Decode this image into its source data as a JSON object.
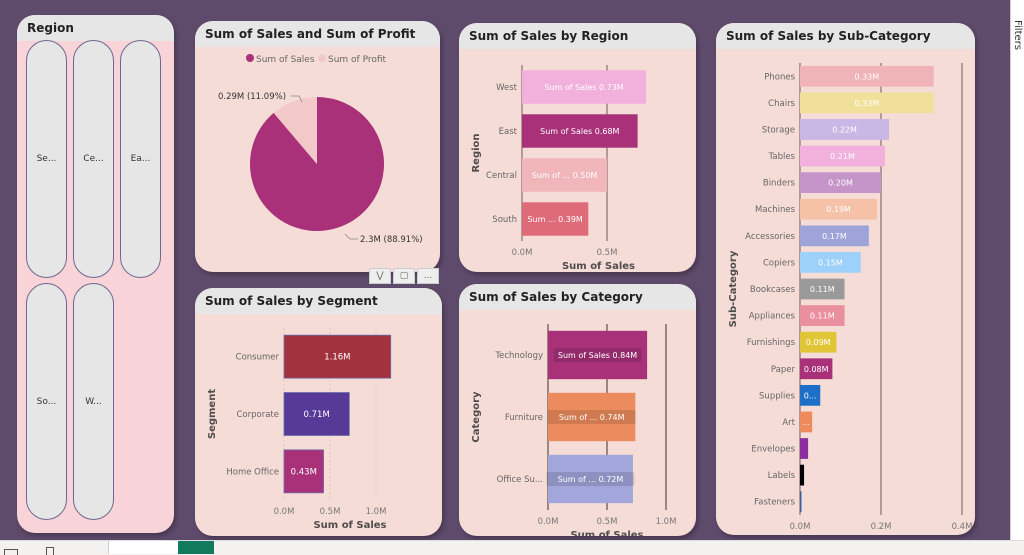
{
  "slicer": {
    "title": "Region",
    "items": [
      {
        "label": "Se..."
      },
      {
        "label": "Ce..."
      },
      {
        "label": "Ea..."
      },
      {
        "label": "So..."
      },
      {
        "label": "W..."
      }
    ]
  },
  "filters_pane": {
    "label": "Filters"
  },
  "visual_toolbar": {
    "filter_icon": "filter-icon",
    "focus_icon": "focus-mode-icon",
    "more_label": "..."
  },
  "chart_data": [
    {
      "type": "pie",
      "title": "Sum of Sales and Sum of Profit",
      "legend": [
        "Sum of Sales",
        "Sum of Profit"
      ],
      "legend_position": "top-center",
      "slices": [
        {
          "name": "Sum of Sales",
          "value": 2.3,
          "label": "2.3M (88.91%)",
          "color": "#a8317a"
        },
        {
          "name": "Sum of Profit",
          "value": 0.29,
          "label": "0.29M (11.09%)",
          "color": "#f2c9c8"
        }
      ]
    },
    {
      "type": "bar",
      "title": "Sum of Sales by Region",
      "ylabel": "Region",
      "xlabel": "Sum of Sales",
      "categories": [
        "West",
        "East",
        "Central",
        "South"
      ],
      "values": [
        0.73,
        0.68,
        0.5,
        0.39
      ],
      "data_labels": [
        "Sum of Sales 0.73M",
        "Sum of Sales 0.68M",
        "Sum of ... 0.50M",
        "Sum ... 0.39M"
      ],
      "colors": [
        "#f2b1dc",
        "#a8317a",
        "#f0b6ba",
        "#df6b78"
      ],
      "xticks": [
        "0.0M",
        "0.5M"
      ],
      "xlim": [
        0,
        0.9
      ]
    },
    {
      "type": "bar",
      "title": "Sum of Sales by Sub-Category",
      "ylabel": "Sub-Category",
      "xlabel": "Sum of Sales",
      "categories": [
        "Phones",
        "Chairs",
        "Storage",
        "Tables",
        "Binders",
        "Machines",
        "Accessories",
        "Copiers",
        "Bookcases",
        "Appliances",
        "Furnishings",
        "Paper",
        "Supplies",
        "Art",
        "Envelopes",
        "Labels",
        "Fasteners"
      ],
      "values": [
        0.33,
        0.33,
        0.22,
        0.21,
        0.2,
        0.19,
        0.17,
        0.15,
        0.11,
        0.11,
        0.09,
        0.08,
        0.05,
        0.03,
        0.02,
        0.01,
        0.003
      ],
      "data_labels": [
        "0.33M",
        "0.33M",
        "0.22M",
        "0.21M",
        "0.20M",
        "0.19M",
        "0.17M",
        "0.15M",
        "0.11M",
        "0.11M",
        "0.09M",
        "0.08M",
        "0...",
        "...",
        "",
        "",
        ""
      ],
      "colors": [
        "#f0b3b8",
        "#f0e09a",
        "#c9b7e6",
        "#f2b1dc",
        "#c594c9",
        "#f5c2a8",
        "#9ea3da",
        "#9dd1fb",
        "#9a9a9a",
        "#ea8f9e",
        "#e0c537",
        "#a8317a",
        "#1e6fc7",
        "#ee8a5c",
        "#8b2d9e",
        "#000000",
        "#3a5fa0"
      ],
      "xticks": [
        "0.0M",
        "0.2M",
        "0.4M"
      ],
      "xlim": [
        0,
        0.4
      ]
    },
    {
      "type": "bar",
      "title": "Sum of Sales by Segment",
      "ylabel": "Segment",
      "xlabel": "Sum of Sales",
      "categories": [
        "Consumer",
        "Corporate",
        "Home Office"
      ],
      "values": [
        1.16,
        0.71,
        0.43
      ],
      "data_labels": [
        "1.16M",
        "0.71M",
        "0.43M"
      ],
      "colors": [
        "#a3323f",
        "#573a98",
        "#a8317a"
      ],
      "xticks": [
        "0.0M",
        "0.5M",
        "1.0M"
      ],
      "xlim": [
        0,
        1.0
      ]
    },
    {
      "type": "bar",
      "title": "Sum of Sales by Category",
      "ylabel": "Category",
      "xlabel": "Sum of Sales",
      "categories": [
        "Technology",
        "Furniture",
        "Office Su..."
      ],
      "values": [
        0.84,
        0.74,
        0.72
      ],
      "data_labels": [
        "Sum of Sales 0.84M",
        "Sum of ... 0.74M",
        "Sum of ... 0.72M"
      ],
      "colors": [
        "#a8317a",
        "#ec8b5d",
        "#a2a6da"
      ],
      "xticks": [
        "0.0M",
        "0.5M",
        "1.0M"
      ],
      "xlim": [
        0,
        1.0
      ]
    }
  ]
}
